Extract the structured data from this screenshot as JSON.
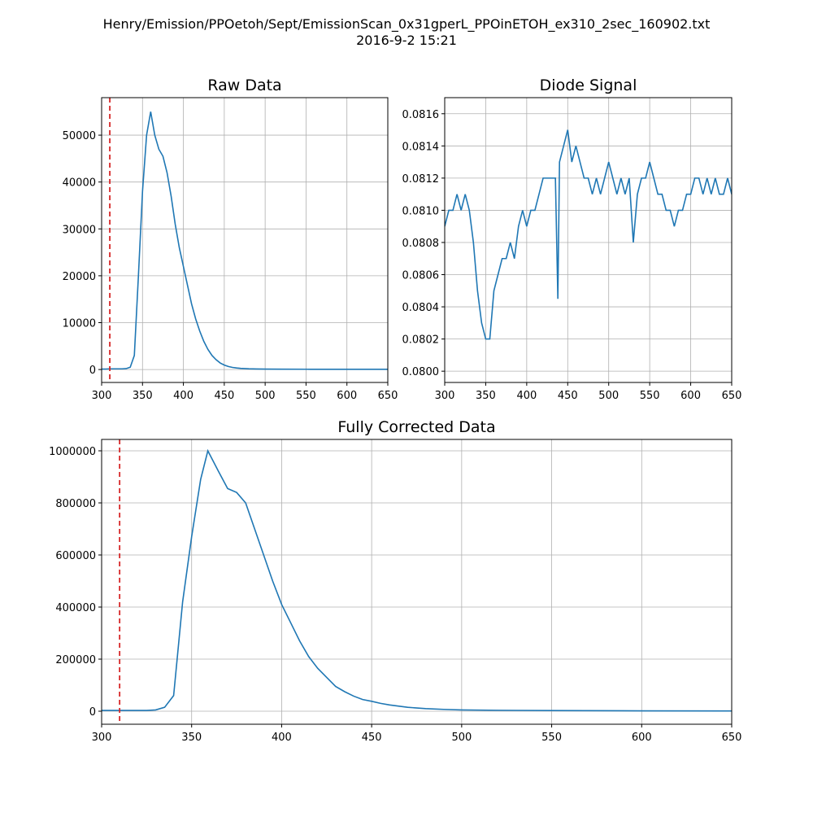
{
  "title": "Henry/Emission/PPOetoh/Sept/EmissionScan_0x31gperL_PPOinETOH_ex310_2sec_160902.txt",
  "subtitle": "2016-9-2     15:21",
  "chart_data": [
    {
      "type": "line",
      "title": "Raw Data",
      "color": "#1f77b4",
      "grid": true,
      "vline": 310,
      "vline_color": "#d62728",
      "x": [
        300,
        305,
        310,
        315,
        320,
        325,
        330,
        335,
        340,
        345,
        350,
        355,
        360,
        365,
        370,
        375,
        380,
        385,
        390,
        395,
        400,
        405,
        410,
        415,
        420,
        425,
        430,
        435,
        440,
        445,
        450,
        455,
        460,
        465,
        470,
        475,
        480,
        490,
        500,
        520,
        550,
        600,
        650
      ],
      "values": [
        100,
        100,
        150,
        150,
        150,
        150,
        200,
        500,
        3000,
        20000,
        38000,
        50000,
        55000,
        50000,
        47000,
        45500,
        42000,
        37000,
        31000,
        26000,
        22000,
        18000,
        14000,
        10800,
        8200,
        6000,
        4300,
        3000,
        2100,
        1400,
        950,
        650,
        450,
        330,
        250,
        200,
        160,
        120,
        100,
        80,
        60,
        50,
        50
      ],
      "xlim": [
        300,
        650
      ],
      "xticks": [
        300,
        350,
        400,
        450,
        500,
        550,
        600,
        650
      ],
      "ylim": [
        -2760,
        58000
      ],
      "yticks": [
        0,
        10000,
        20000,
        30000,
        40000,
        50000
      ]
    },
    {
      "type": "line",
      "title": "Diode Signal",
      "color": "#1f77b4",
      "grid": true,
      "x": [
        300,
        305,
        310,
        315,
        320,
        325,
        330,
        335,
        340,
        345,
        350,
        355,
        360,
        365,
        370,
        375,
        380,
        385,
        390,
        395,
        400,
        405,
        410,
        415,
        420,
        425,
        430,
        435,
        438,
        440,
        445,
        450,
        455,
        460,
        465,
        470,
        475,
        480,
        485,
        490,
        495,
        500,
        505,
        510,
        515,
        520,
        525,
        530,
        535,
        540,
        545,
        550,
        555,
        560,
        565,
        570,
        575,
        580,
        585,
        590,
        595,
        600,
        605,
        610,
        615,
        620,
        625,
        630,
        635,
        640,
        645,
        650
      ],
      "values": [
        0.0809,
        0.081,
        0.081,
        0.0811,
        0.081,
        0.0811,
        0.081,
        0.0808,
        0.0805,
        0.0803,
        0.0802,
        0.0802,
        0.0805,
        0.0806,
        0.0807,
        0.0807,
        0.0808,
        0.0807,
        0.0809,
        0.081,
        0.0809,
        0.081,
        0.081,
        0.0811,
        0.0812,
        0.0812,
        0.0812,
        0.0812,
        0.08045,
        0.0813,
        0.0814,
        0.0815,
        0.0813,
        0.0814,
        0.0813,
        0.0812,
        0.0812,
        0.0811,
        0.0812,
        0.0811,
        0.0812,
        0.0813,
        0.0812,
        0.0811,
        0.0812,
        0.0811,
        0.0812,
        0.0808,
        0.0811,
        0.0812,
        0.0812,
        0.0813,
        0.0812,
        0.0811,
        0.0811,
        0.081,
        0.081,
        0.0809,
        0.081,
        0.081,
        0.0811,
        0.0811,
        0.0812,
        0.0812,
        0.0811,
        0.0812,
        0.0811,
        0.0812,
        0.0811,
        0.0811,
        0.0812,
        0.0811
      ],
      "xlim": [
        300,
        650
      ],
      "xticks": [
        300,
        350,
        400,
        450,
        500,
        550,
        600,
        650
      ],
      "ylim": [
        0.07993,
        0.0817
      ],
      "yticks": [
        {
          "value": 0.08,
          "label": "0.0800"
        },
        0.0802,
        0.0804,
        0.0806,
        0.0808,
        {
          "value": 0.081,
          "label": "0.0810"
        },
        0.0812,
        0.0814,
        0.0816
      ]
    },
    {
      "type": "line",
      "title": "Fully Corrected Data",
      "color": "#1f77b4",
      "grid": true,
      "vline": 310,
      "vline_color": "#d62728",
      "x": [
        300,
        305,
        310,
        315,
        320,
        325,
        330,
        335,
        340,
        345,
        350,
        355,
        359,
        365,
        370,
        375,
        380,
        385,
        390,
        395,
        400,
        405,
        410,
        415,
        420,
        425,
        430,
        435,
        440,
        445,
        450,
        455,
        460,
        470,
        480,
        490,
        500,
        520,
        550,
        600,
        650
      ],
      "values": [
        3000,
        3000,
        3000,
        3000,
        3000,
        3000,
        5000,
        15000,
        60000,
        420000,
        670000,
        890000,
        1000000,
        920000,
        855000,
        840000,
        800000,
        700000,
        600000,
        500000,
        410000,
        340000,
        270000,
        210000,
        165000,
        130000,
        95000,
        75000,
        58000,
        45000,
        38000,
        30000,
        24000,
        15000,
        10000,
        7000,
        5000,
        3500,
        2500,
        1500,
        1000
      ],
      "xlim": [
        300,
        650
      ],
      "xticks": [
        300,
        350,
        400,
        450,
        500,
        550,
        600,
        650
      ],
      "ylim": [
        -50000,
        1043750
      ],
      "yticks": [
        0,
        200000,
        400000,
        600000,
        800000,
        1000000
      ]
    }
  ]
}
